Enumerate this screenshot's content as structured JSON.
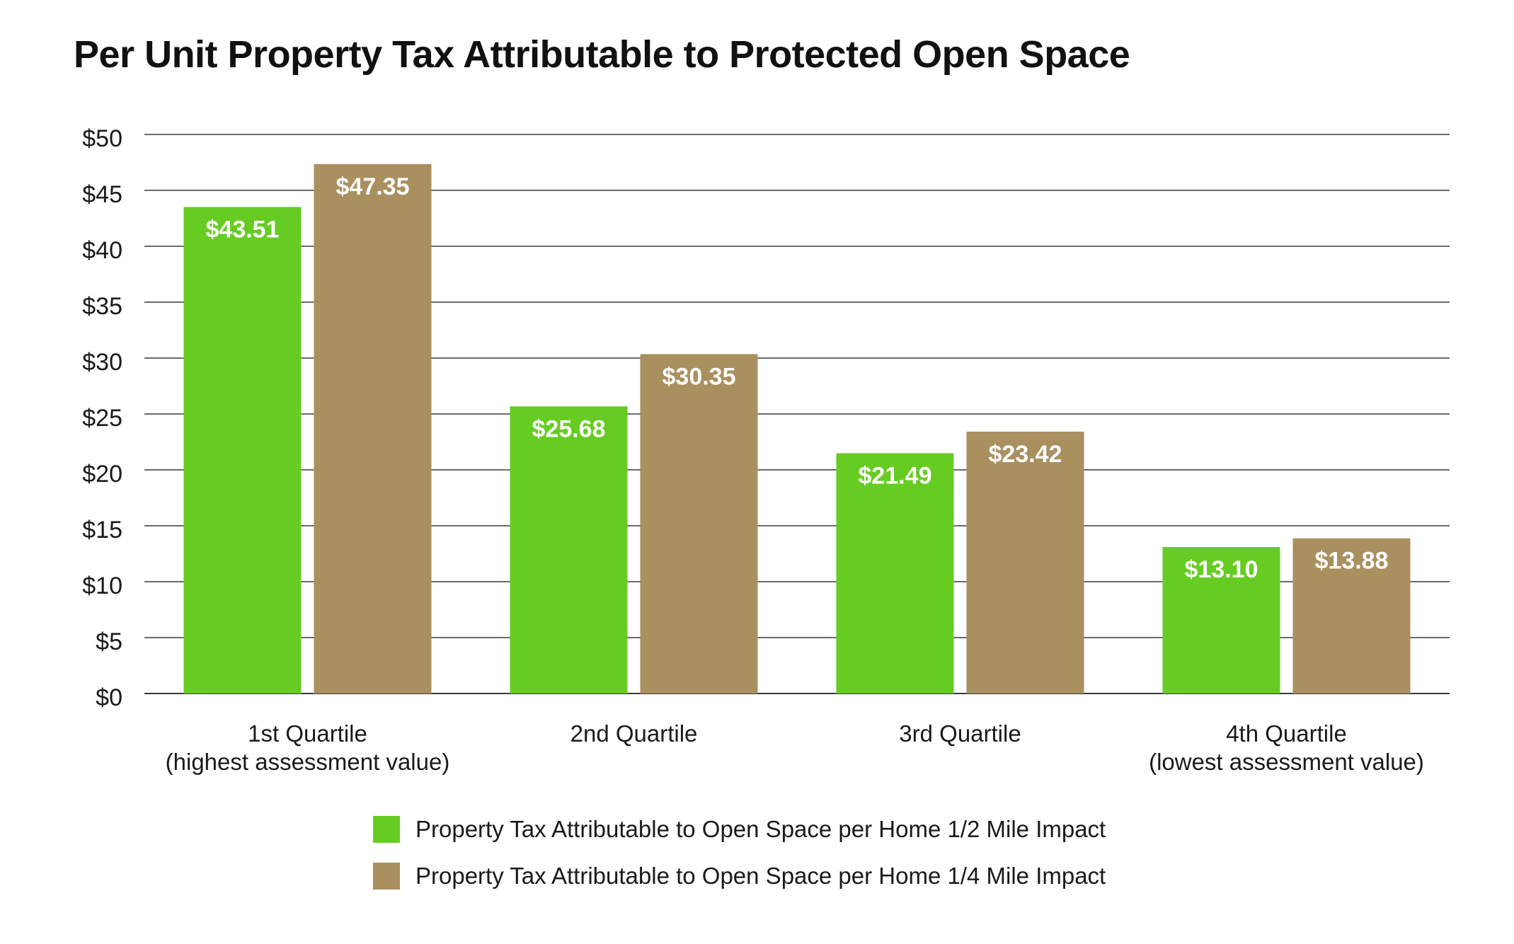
{
  "chart_data": {
    "type": "bar",
    "title": "Per Unit Property Tax Attributable to Protected Open Space",
    "categories": [
      [
        "1st Quartile",
        "(highest assessment value)"
      ],
      [
        "2nd Quartile"
      ],
      [
        "3rd Quartile"
      ],
      [
        "4th Quartile",
        "(lowest assessment value)"
      ]
    ],
    "series": [
      {
        "name": "Property Tax Attributable to Open Space per Home 1/2 Mile Impact",
        "color": "#66cc22",
        "values": [
          43.51,
          25.68,
          21.49,
          13.1
        ],
        "labels": [
          "$43.51",
          "$25.68",
          "$21.49",
          "$13.10"
        ]
      },
      {
        "name": "Property Tax Attributable to Open Space per Home 1/4 Mile Impact",
        "color": "#aa8f5f",
        "values": [
          47.35,
          30.35,
          23.42,
          13.88
        ],
        "labels": [
          "$47.35",
          "$30.35",
          "$23.42",
          "$13.88"
        ]
      }
    ],
    "ylim": [
      0,
      50
    ],
    "yticks": [
      0,
      5,
      10,
      15,
      20,
      25,
      30,
      35,
      40,
      45,
      50
    ],
    "ytick_labels": [
      "$0",
      "$5",
      "$10",
      "$15",
      "$20",
      "$25",
      "$30",
      "$35",
      "$40",
      "$45",
      "$50"
    ],
    "xlabel": "",
    "ylabel": "",
    "grid": true,
    "legend_position": "bottom"
  }
}
